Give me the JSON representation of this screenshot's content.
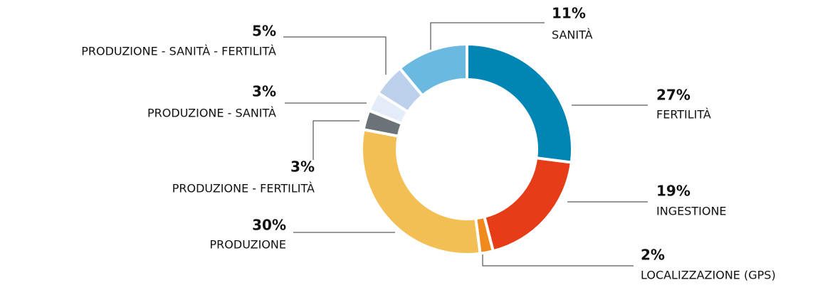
{
  "chart_data": {
    "type": "donut",
    "categories": [
      "FERTILITÀ",
      "INGESTIONE",
      "LOCALIZZAZIONE (GPS)",
      "PRODUZIONE",
      "PRODUZIONE - FERTILITÀ",
      "PRODUZIONE - SANITÀ",
      "PRODUZIONE - SANITÀ - FERTILITÀ",
      "SANITÀ"
    ],
    "values": [
      27,
      19,
      2,
      30,
      3,
      3,
      5,
      11
    ],
    "value_labels": [
      "27%",
      "19%",
      "2%",
      "30%",
      "3%",
      "3%",
      "5%",
      "11%"
    ],
    "colors": [
      "#0085b5",
      "#e63c17",
      "#f08a1c",
      "#f3bf55",
      "#6b7378",
      "#e5ecf9",
      "#bcd0ec",
      "#6bb8e0"
    ]
  }
}
